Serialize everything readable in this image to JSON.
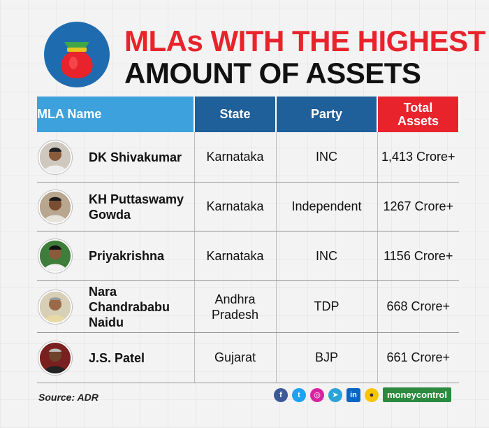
{
  "header": {
    "title_line1": "MLAs WITH THE HIGHEST",
    "title_line2": "AMOUNT OF ASSETS",
    "logo_icon": "money-bag-icon"
  },
  "table": {
    "columns": [
      "MLA Name",
      "State",
      "Party",
      "Total Assets"
    ],
    "rows": [
      {
        "name": "DK Shivakumar",
        "state": "Karnataka",
        "party": "INC",
        "assets": "1,413 Crore+"
      },
      {
        "name": "KH Puttaswamy Gowda",
        "state": "Karnataka",
        "party": "Independent",
        "assets": "1267 Crore+"
      },
      {
        "name": "Priyakrishna",
        "state": "Karnataka",
        "party": "INC",
        "assets": "1156 Crore+"
      },
      {
        "name": "Nara Chandrababu Naidu",
        "state": "Andhra Pradesh",
        "party": "TDP",
        "assets": "668 Crore+"
      },
      {
        "name": "J.S. Patel",
        "state": "Gujarat",
        "party": "BJP",
        "assets": "661 Crore+"
      }
    ]
  },
  "footer": {
    "source": "Source: ADR",
    "brand": "moneycontrol",
    "social_icons": [
      "facebook-icon",
      "twitter-icon",
      "instagram-icon",
      "telegram-icon",
      "linkedin-icon",
      "koo-icon"
    ]
  },
  "colors": {
    "title_red": "#e8232b",
    "header_light_blue": "#3da1dd",
    "header_dark_blue": "#1f5f9a",
    "header_red": "#e8232b",
    "brand_green": "#2b8a3e"
  },
  "chart_data": {
    "type": "table",
    "title": "MLAs WITH THE HIGHEST AMOUNT OF ASSETS",
    "columns": [
      "MLA Name",
      "State",
      "Party",
      "Total Assets"
    ],
    "rows": [
      [
        "DK Shivakumar",
        "Karnataka",
        "INC",
        "1,413 Crore+"
      ],
      [
        "KH Puttaswamy Gowda",
        "Karnataka",
        "Independent",
        "1267 Crore+"
      ],
      [
        "Priyakrishna",
        "Karnataka",
        "INC",
        "1156 Crore+"
      ],
      [
        "Nara Chandrababu Naidu",
        "Andhra Pradesh",
        "TDP",
        "668 Crore+"
      ],
      [
        "J.S. Patel",
        "Gujarat",
        "BJP",
        "661 Crore+"
      ]
    ]
  }
}
